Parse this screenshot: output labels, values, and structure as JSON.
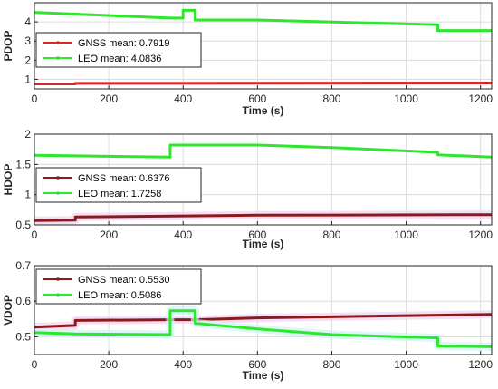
{
  "chart_data": [
    {
      "type": "line",
      "ylabel": "PDOP",
      "xlabel": "Time (s)",
      "xlim": [
        0,
        1230
      ],
      "ylim": [
        0.5,
        5
      ],
      "xticks": [
        0,
        200,
        400,
        600,
        800,
        1000,
        1200
      ],
      "yticks": [
        1,
        2,
        3,
        4
      ],
      "grid": true,
      "legend_position": "middle-left",
      "series": [
        {
          "name": "GNSS mean: 0.7919",
          "color": "#d62728",
          "points": [
            [
              0,
              0.76
            ],
            [
              110,
              0.76
            ],
            [
              110,
              0.79
            ],
            [
              1230,
              0.81
            ]
          ]
        },
        {
          "name": "LEO mean: 4.0836",
          "color": "#2ee62e",
          "points": [
            [
              0,
              4.5
            ],
            [
              365,
              4.2
            ],
            [
              400,
              4.2
            ],
            [
              400,
              4.6
            ],
            [
              432,
              4.6
            ],
            [
              432,
              4.1
            ],
            [
              600,
              4.1
            ],
            [
              1085,
              3.85
            ],
            [
              1085,
              3.55
            ],
            [
              1230,
              3.55
            ]
          ]
        }
      ]
    },
    {
      "type": "line",
      "ylabel": "HDOP",
      "xlabel": "Time (s)",
      "xlim": [
        0,
        1230
      ],
      "ylim": [
        0.5,
        2
      ],
      "xticks": [
        0,
        200,
        400,
        600,
        800,
        1000,
        1200
      ],
      "yticks": [
        0.5,
        1,
        1.5,
        2
      ],
      "grid": true,
      "legend_position": "middle-left",
      "series": [
        {
          "name": "GNSS mean: 0.6376",
          "color": "#8b1a1a",
          "points": [
            [
              0,
              0.57
            ],
            [
              110,
              0.58
            ],
            [
              110,
              0.63
            ],
            [
              600,
              0.66
            ],
            [
              1230,
              0.67
            ]
          ]
        },
        {
          "name": "LEO mean: 1.7258",
          "color": "#2ee62e",
          "points": [
            [
              0,
              1.65
            ],
            [
              365,
              1.62
            ],
            [
              365,
              1.82
            ],
            [
              600,
              1.82
            ],
            [
              800,
              1.78
            ],
            [
              1085,
              1.7
            ],
            [
              1085,
              1.66
            ],
            [
              1230,
              1.62
            ]
          ]
        }
      ]
    },
    {
      "type": "line",
      "ylabel": "VDOP",
      "xlabel": "Time (s)",
      "xlim": [
        0,
        1230
      ],
      "ylim": [
        0.45,
        0.7
      ],
      "xticks": [
        0,
        200,
        400,
        600,
        800,
        1000,
        1200
      ],
      "yticks": [
        0.5,
        0.6,
        0.7
      ],
      "grid": true,
      "legend_position": "top-left",
      "series": [
        {
          "name": "GNSS mean: 0.5530",
          "color": "#8b1a1a",
          "points": [
            [
              0,
              0.527
            ],
            [
              110,
              0.532
            ],
            [
              110,
              0.546
            ],
            [
              365,
              0.548
            ],
            [
              432,
              0.548
            ],
            [
              600,
              0.553
            ],
            [
              800,
              0.556
            ],
            [
              1230,
              0.563
            ]
          ]
        },
        {
          "name": "LEO mean: 0.5086",
          "color": "#2ee62e",
          "points": [
            [
              0,
              0.512
            ],
            [
              110,
              0.508
            ],
            [
              365,
              0.506
            ],
            [
              365,
              0.573
            ],
            [
              432,
              0.573
            ],
            [
              432,
              0.538
            ],
            [
              600,
              0.522
            ],
            [
              800,
              0.506
            ],
            [
              1085,
              0.497
            ],
            [
              1085,
              0.474
            ],
            [
              1230,
              0.472
            ]
          ]
        }
      ]
    }
  ]
}
